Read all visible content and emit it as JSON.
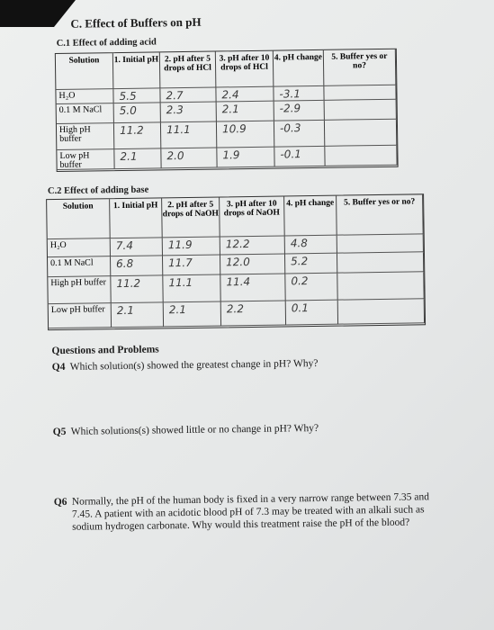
{
  "header": {
    "letter": "C.",
    "title": "Effect of Buffers on pH"
  },
  "section1": {
    "title": "C.1 Effect of adding acid",
    "headers": [
      "Solution",
      "1. Initial pH",
      "2. pH after 5 drops of HCl",
      "3. pH after 10 drops of HCl",
      "4. pH change",
      "5. Buffer yes or no?"
    ],
    "rows": [
      [
        "H₂O",
        "5.5",
        "2.7",
        "2.4",
        "-3.1"
      ],
      [
        "0.1 M NaCl",
        "5.0",
        "2.3",
        "2.1",
        "-2.9"
      ],
      [
        "High pH buffer",
        "11.2",
        "11.1",
        "10.9",
        "-0.3"
      ],
      [
        "Low pH buffer",
        "2.1",
        "2.0",
        "1.9",
        "-0.1"
      ]
    ]
  },
  "section2": {
    "title": "C.2 Effect of adding base",
    "headers": [
      "Solution",
      "1. Initial pH",
      "2. pH after 5 drops of NaOH",
      "3. pH after 10 drops of NaOH",
      "4. pH change",
      "5. Buffer yes or no?"
    ],
    "rows": [
      [
        "H₂O",
        "7.4",
        "11.9",
        "12.2",
        "4.8"
      ],
      [
        "0.1 M NaCl",
        "6.8",
        "11.7",
        "12.0",
        "5.2"
      ],
      [
        "High pH buffer",
        "11.2",
        "11.1",
        "11.4",
        "0.2"
      ],
      [
        "Low pH buffer",
        "2.1",
        "2.1",
        "2.2",
        "0.1"
      ]
    ]
  },
  "questions": {
    "title": "Questions and Problems",
    "items": [
      {
        "label": "Q4",
        "text": "Which solution(s) showed the greatest change in pH? Why?"
      },
      {
        "label": "Q5",
        "text": "Which solutions(s) showed little or no change in pH? Why?"
      },
      {
        "label": "Q6",
        "text": "Normally, the pH of the human body is fixed in a very narrow range between 7.35 and 7.45. A patient with an acidotic blood pH of 7.3 may be treated with an alkali such as sodium hydrogen carbonate. Why would this treatment raise the pH of the blood?"
      }
    ]
  }
}
